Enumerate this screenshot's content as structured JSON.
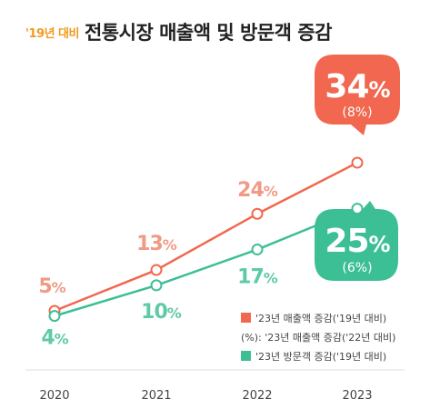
{
  "title_highlight": "'19년 대비",
  "title_main": "전통시장 매출액 및 방문객 증감",
  "colors": {
    "sales": "#f2674f",
    "sales_label": "#f09a86",
    "visitors": "#3dbf96",
    "visitors_label": "#5fcaa6",
    "axis": "#dddddd",
    "text": "#444444"
  },
  "chart_data": {
    "type": "line",
    "x": [
      "2020",
      "2021",
      "2022",
      "2023"
    ],
    "ylim": [
      0,
      40
    ],
    "series": [
      {
        "name": "'23년 매출액 증감('19년 대비)",
        "values": [
          5,
          13,
          24,
          34
        ],
        "labels": [
          "5%",
          "13%",
          "24%",
          "34%"
        ],
        "yoy_label": "(8%)"
      },
      {
        "name": "'23년 방문객 증감('19년 대비)",
        "values": [
          4,
          10,
          17,
          25
        ],
        "labels": [
          "4%",
          "10%",
          "17%",
          "25%"
        ],
        "yoy_label": "(6%)"
      }
    ],
    "legend": {
      "position": "bottom-right",
      "entries": [
        "'23년 매출액 증감('19년 대비)",
        "(%): '23년 매출액 증감('22년 대비)",
        "'23년 방문객 증감('19년 대비)"
      ]
    },
    "grid": false
  }
}
